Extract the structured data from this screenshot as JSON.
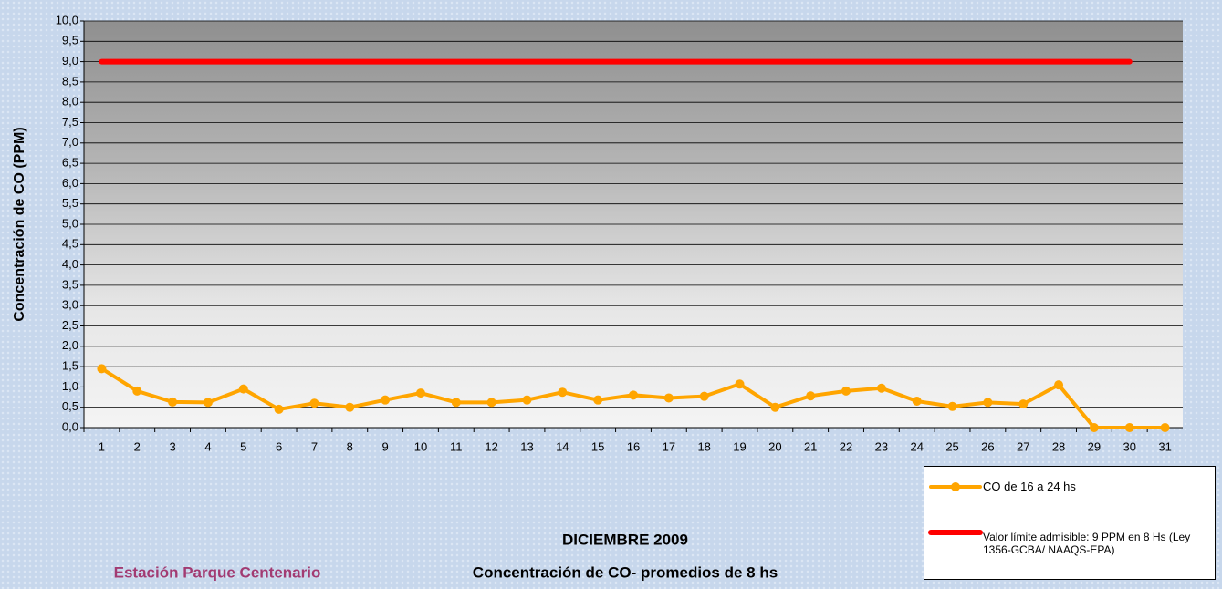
{
  "chart_data": {
    "type": "line",
    "title": "DICIEMBRE 2009",
    "subtitle": "Concentración de CO- promedios de 8 hs",
    "station": "Estación Parque Centenario",
    "y_label": "Concentración de CO (PPM)",
    "categories": [
      "1",
      "2",
      "3",
      "4",
      "5",
      "6",
      "7",
      "8",
      "9",
      "10",
      "11",
      "12",
      "13",
      "14",
      "15",
      "16",
      "17",
      "18",
      "19",
      "20",
      "21",
      "22",
      "23",
      "24",
      "25",
      "26",
      "27",
      "28",
      "29",
      "30",
      "31"
    ],
    "series": [
      {
        "name": "CO de 16 a 24 hs",
        "color": "#ffa500",
        "marker": true,
        "values": [
          1.45,
          0.9,
          0.63,
          0.62,
          0.95,
          0.45,
          0.6,
          0.5,
          0.68,
          0.85,
          0.62,
          0.62,
          0.68,
          0.87,
          0.68,
          0.8,
          0.73,
          0.77,
          1.07,
          0.5,
          0.78,
          0.9,
          0.97,
          0.65,
          0.52,
          0.62,
          0.58,
          1.05,
          0,
          0,
          0
        ]
      },
      {
        "name": "Valor límite admisible: 9 PPM en 8 Hs (Ley 1356-GCBA/ NAAQS-EPA)",
        "color": "#ff0000",
        "marker": false,
        "values": [
          9,
          9,
          9,
          9,
          9,
          9,
          9,
          9,
          9,
          9,
          9,
          9,
          9,
          9,
          9,
          9,
          9,
          9,
          9,
          9,
          9,
          9,
          9,
          9,
          9,
          9,
          9,
          9,
          9,
          9,
          null
        ]
      }
    ],
    "ylim": [
      0,
      10
    ],
    "yticks": [
      {
        "value": 0,
        "label": "0,0"
      },
      {
        "value": 0.5,
        "label": "0,5"
      },
      {
        "value": 1,
        "label": "1,0"
      },
      {
        "value": 1.5,
        "label": "1,5"
      },
      {
        "value": 2,
        "label": "2,0"
      },
      {
        "value": 2.5,
        "label": "2,5"
      },
      {
        "value": 3,
        "label": "3,0"
      },
      {
        "value": 3.5,
        "label": "3,5"
      },
      {
        "value": 4,
        "label": "4,0"
      },
      {
        "value": 4.5,
        "label": "4,5"
      },
      {
        "value": 5,
        "label": "5,0"
      },
      {
        "value": 5.5,
        "label": "5,5"
      },
      {
        "value": 6,
        "label": "6,0"
      },
      {
        "value": 6.5,
        "label": "6,5"
      },
      {
        "value": 7,
        "label": "7,0"
      },
      {
        "value": 7.5,
        "label": "7,5"
      },
      {
        "value": 8,
        "label": "8,0"
      },
      {
        "value": 8.5,
        "label": "8,5"
      },
      {
        "value": 9,
        "label": "9,0"
      },
      {
        "value": 9.5,
        "label": "9,5"
      },
      {
        "value": 10,
        "label": "10,0"
      }
    ],
    "grid": true
  }
}
